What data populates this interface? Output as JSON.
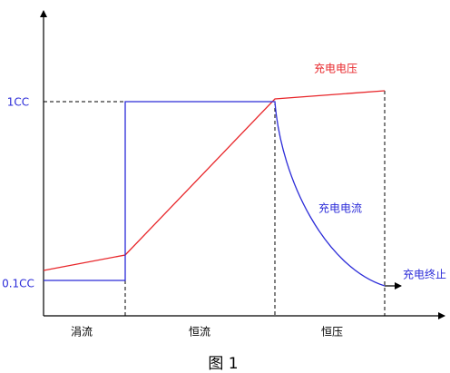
{
  "labels": {
    "y_high": "1CC",
    "y_low": "0.1CC",
    "voltage": "充电电压",
    "current": "充电电流",
    "termination": "充电终止"
  },
  "phases": [
    "涓流",
    "恒流",
    "恒压"
  ],
  "caption": "图 1"
}
